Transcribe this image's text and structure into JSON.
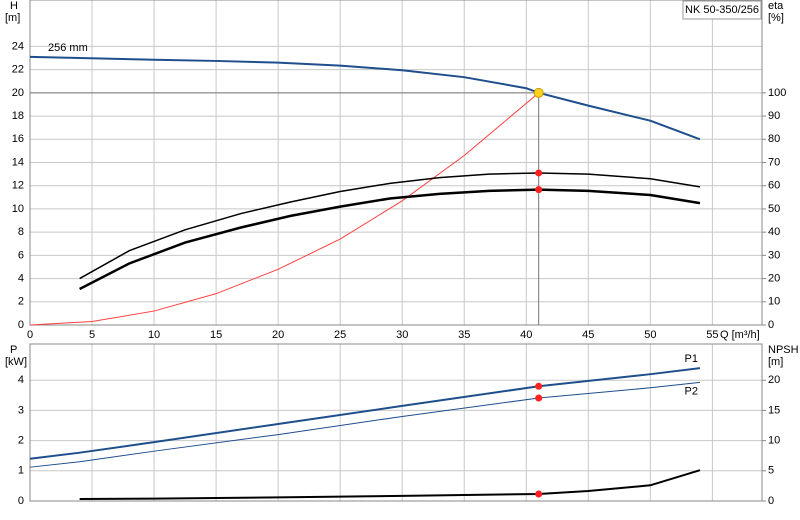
{
  "chart_data": [
    {
      "type": "line",
      "title": "NK 50-350/256",
      "xlabel": "Q [m³/h]",
      "ylabel": "H",
      "ylabel_unit": "[m]",
      "y2label": "eta",
      "y2label_unit": "[%]",
      "xlim": [
        0,
        59
      ],
      "xticks": [
        0,
        5,
        10,
        15,
        20,
        25,
        30,
        35,
        40,
        45,
        50,
        55
      ],
      "ylim": [
        0,
        28
      ],
      "yticks": [
        0,
        2,
        4,
        6,
        8,
        10,
        12,
        14,
        16,
        18,
        20,
        22,
        24
      ],
      "y2lim": [
        0,
        140
      ],
      "y2ticks": [
        0,
        10,
        20,
        30,
        40,
        50,
        60,
        70,
        80,
        90,
        100
      ],
      "grid": true,
      "operating_point": {
        "x": 41,
        "y": 20
      },
      "series": [
        {
          "name": "256 mm",
          "color": "#1f4e8c",
          "line_width": 2,
          "x": [
            0,
            4,
            10,
            15,
            20,
            25,
            30,
            35,
            40,
            41,
            45,
            50,
            54
          ],
          "values": [
            23.1,
            23.0,
            22.85,
            22.75,
            22.6,
            22.35,
            21.95,
            21.35,
            20.4,
            20.0,
            18.9,
            17.6,
            16.0
          ]
        },
        {
          "color": "#ff4040",
          "line_width": 1,
          "x": [
            0,
            5,
            10,
            15,
            20,
            25,
            30,
            35,
            41
          ],
          "values": [
            0,
            0.3,
            1.2,
            2.7,
            4.8,
            7.4,
            10.7,
            14.6,
            20
          ]
        },
        {
          "color": "#000000",
          "line_width": 1.5,
          "axis": "y2",
          "highlight": true,
          "x": [
            4,
            8,
            12.5,
            17,
            21,
            25,
            29,
            33,
            37,
            41,
            45,
            50,
            54
          ],
          "values": [
            20,
            32,
            41,
            48,
            53,
            57.5,
            61,
            63.5,
            65,
            65.5,
            65,
            63,
            59.5
          ]
        },
        {
          "color": "#000000",
          "line_width": 2.5,
          "axis": "y2",
          "highlight": true,
          "x": [
            4,
            8,
            12.5,
            17,
            21,
            25,
            29,
            33,
            37,
            41,
            45,
            50,
            54
          ],
          "values": [
            15.5,
            26.5,
            35.5,
            42,
            47,
            51,
            54.5,
            56.5,
            57.8,
            58.3,
            57.8,
            56,
            52.5
          ]
        }
      ]
    },
    {
      "type": "line",
      "ylabel": "P",
      "ylabel_unit": "[kW]",
      "y2label": "NPSH",
      "y2label_unit": "[m]",
      "xlim": [
        0,
        59
      ],
      "ylim": [
        0,
        5.2
      ],
      "yticks": [
        0,
        1,
        2,
        3,
        4
      ],
      "y2lim": [
        0,
        26
      ],
      "y2ticks": [
        0,
        5,
        10,
        15,
        20
      ],
      "grid": true,
      "operating_point": {
        "x": 41
      },
      "series": [
        {
          "name": "P1",
          "color": "#1f4e8c",
          "line_width": 2,
          "highlight": true,
          "x": [
            0,
            4,
            10,
            20,
            30,
            41,
            50,
            54
          ],
          "values": [
            1.4,
            1.6,
            1.95,
            2.55,
            3.15,
            3.8,
            4.2,
            4.4
          ]
        },
        {
          "name": "P2",
          "color": "#1f4e8c",
          "line_width": 1,
          "highlight": true,
          "x": [
            0,
            4,
            10,
            20,
            30,
            41,
            50,
            54
          ],
          "values": [
            1.12,
            1.3,
            1.65,
            2.2,
            2.8,
            3.41,
            3.75,
            3.93
          ]
        },
        {
          "color": "#000000",
          "line_width": 2,
          "axis": "y2",
          "highlight": true,
          "x": [
            4,
            10,
            20,
            30,
            41,
            45,
            50,
            54
          ],
          "values": [
            0.33,
            0.4,
            0.6,
            0.85,
            1.16,
            1.65,
            2.6,
            5.1
          ]
        }
      ]
    }
  ]
}
